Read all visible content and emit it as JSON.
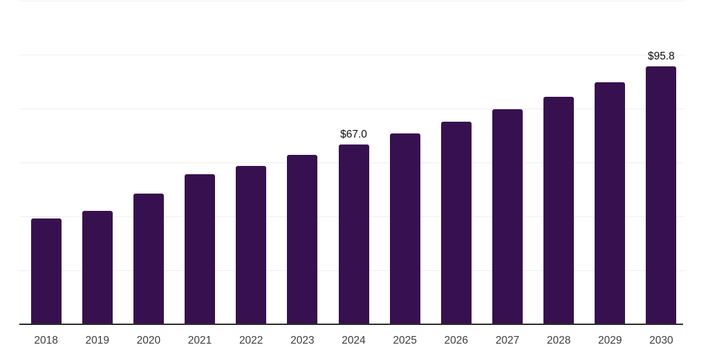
{
  "chart_data": {
    "type": "bar",
    "title": "",
    "xlabel": "",
    "ylabel": "",
    "categories": [
      "2018",
      "2019",
      "2020",
      "2021",
      "2022",
      "2023",
      "2024",
      "2025",
      "2026",
      "2027",
      "2028",
      "2029",
      "2030"
    ],
    "values": [
      39.4,
      42.2,
      48.8,
      56.0,
      59.1,
      63.0,
      67.0,
      71.0,
      75.4,
      80.0,
      84.6,
      90.1,
      95.8
    ],
    "data_labels": [
      {
        "category": "2024",
        "text": "$67.0"
      },
      {
        "category": "2030",
        "text": "$95.8"
      }
    ],
    "ylim": [
      0,
      120
    ],
    "grid": true,
    "gridline_values": [
      20,
      40,
      60,
      80,
      100,
      120
    ],
    "legend": "none",
    "colors": {
      "bar": "#37114F",
      "gridline": "#EFEFEF",
      "axis_line": "#2B2B2B",
      "tick_label": "#3C3C3C",
      "data_label": "#0D0D0D",
      "background": "#FFFFFF"
    }
  }
}
